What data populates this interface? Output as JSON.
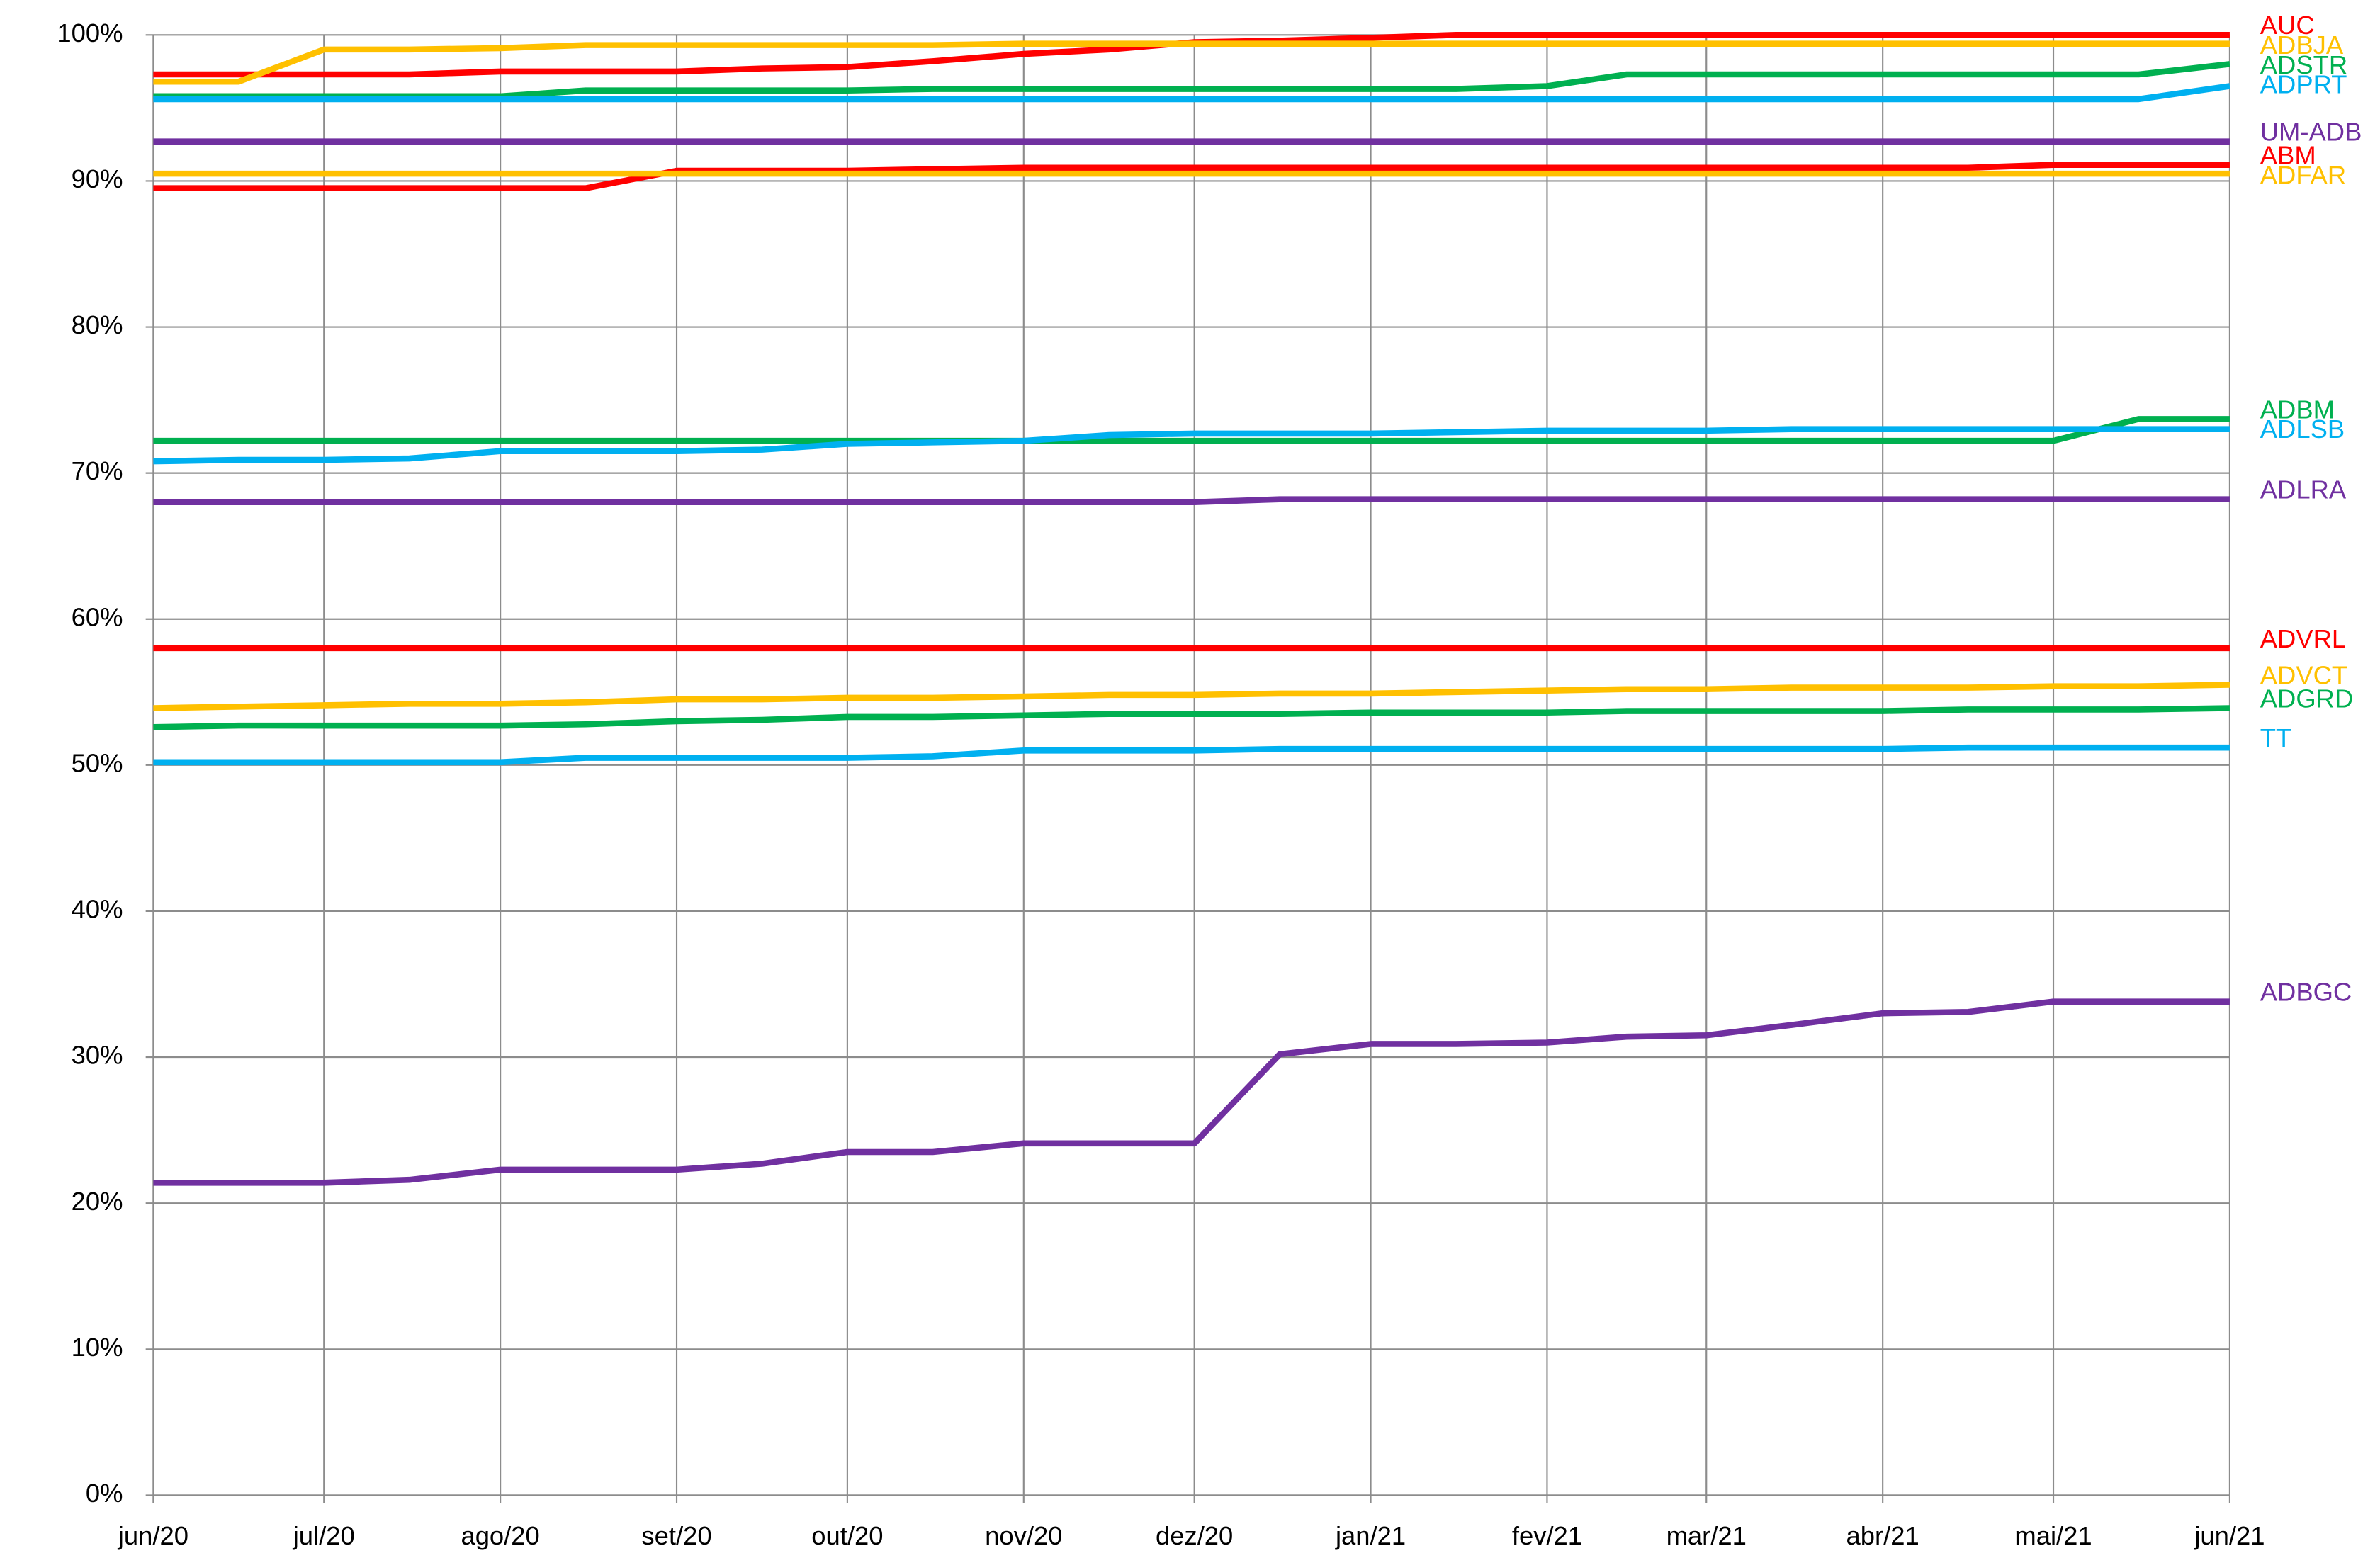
{
  "chart_data": {
    "type": "line",
    "x": [
      0,
      15,
      30,
      45,
      61,
      76,
      92,
      107,
      122,
      137,
      153,
      168,
      183,
      198,
      214,
      229,
      245,
      259,
      273,
      288,
      304,
      319,
      334,
      349,
      365
    ],
    "xlim": [
      0,
      365
    ],
    "xticks": [
      {
        "value": 0,
        "label": "jun/20"
      },
      {
        "value": 30,
        "label": "jul/20"
      },
      {
        "value": 61,
        "label": "ago/20"
      },
      {
        "value": 92,
        "label": "set/20"
      },
      {
        "value": 122,
        "label": "out/20"
      },
      {
        "value": 153,
        "label": "nov/20"
      },
      {
        "value": 183,
        "label": "dez/20"
      },
      {
        "value": 214,
        "label": "jan/21"
      },
      {
        "value": 245,
        "label": "fev/21"
      },
      {
        "value": 273,
        "label": "mar/21"
      },
      {
        "value": 304,
        "label": "abr/21"
      },
      {
        "value": 334,
        "label": "mai/21"
      },
      {
        "value": 365,
        "label": "jun/21"
      }
    ],
    "ylim": [
      0,
      100
    ],
    "yticks": [
      {
        "value": 0,
        "label": "0%"
      },
      {
        "value": 10,
        "label": "10%"
      },
      {
        "value": 20,
        "label": "20%"
      },
      {
        "value": 30,
        "label": "30%"
      },
      {
        "value": 40,
        "label": "40%"
      },
      {
        "value": 50,
        "label": "50%"
      },
      {
        "value": 60,
        "label": "60%"
      },
      {
        "value": 70,
        "label": "70%"
      },
      {
        "value": 80,
        "label": "80%"
      },
      {
        "value": 90,
        "label": "90%"
      },
      {
        "value": 100,
        "label": "100%"
      }
    ],
    "grid": true,
    "series": [
      {
        "name": "AUC",
        "color": "#ff0000",
        "values": [
          97.3,
          97.3,
          97.3,
          97.3,
          97.5,
          97.5,
          97.5,
          97.7,
          97.8,
          98.2,
          98.7,
          99.0,
          99.5,
          99.6,
          99.8,
          100,
          100,
          100,
          100,
          100,
          100,
          100,
          100,
          100,
          100
        ]
      },
      {
        "name": "ADBJA",
        "color": "#ffc000",
        "values": [
          96.8,
          96.8,
          99.0,
          99.0,
          99.1,
          99.3,
          99.3,
          99.3,
          99.3,
          99.3,
          99.4,
          99.4,
          99.4,
          99.4,
          99.4,
          99.4,
          99.4,
          99.4,
          99.4,
          99.4,
          99.4,
          99.4,
          99.4,
          99.4,
          99.4
        ]
      },
      {
        "name": "ADSTR",
        "color": "#00b050",
        "values": [
          95.8,
          95.8,
          95.8,
          95.8,
          95.8,
          96.2,
          96.2,
          96.2,
          96.2,
          96.3,
          96.3,
          96.3,
          96.3,
          96.3,
          96.3,
          96.3,
          96.5,
          97.3,
          97.3,
          97.3,
          97.3,
          97.3,
          97.3,
          97.3,
          98.0
        ]
      },
      {
        "name": "ADPRT",
        "color": "#00b0f0",
        "values": [
          95.6,
          95.6,
          95.6,
          95.6,
          95.6,
          95.6,
          95.6,
          95.6,
          95.6,
          95.6,
          95.6,
          95.6,
          95.6,
          95.6,
          95.6,
          95.6,
          95.6,
          95.6,
          95.6,
          95.6,
          95.6,
          95.6,
          95.6,
          95.6,
          96.5
        ]
      },
      {
        "name": "UM-ADB",
        "color": "#7030a0",
        "values": [
          92.7,
          92.7,
          92.7,
          92.7,
          92.7,
          92.7,
          92.7,
          92.7,
          92.7,
          92.7,
          92.7,
          92.7,
          92.7,
          92.7,
          92.7,
          92.7,
          92.7,
          92.7,
          92.7,
          92.7,
          92.7,
          92.7,
          92.7,
          92.7,
          92.7
        ]
      },
      {
        "name": "ABM",
        "color": "#ff0000",
        "values": [
          89.5,
          89.5,
          89.5,
          89.5,
          89.5,
          89.5,
          90.7,
          90.7,
          90.7,
          90.8,
          90.9,
          90.9,
          90.9,
          90.9,
          90.9,
          90.9,
          90.9,
          90.9,
          90.9,
          90.9,
          90.9,
          90.9,
          91.1,
          91.1,
          91.1
        ]
      },
      {
        "name": "ADFAR",
        "color": "#ffc000",
        "values": [
          90.5,
          90.5,
          90.5,
          90.5,
          90.5,
          90.5,
          90.5,
          90.5,
          90.5,
          90.5,
          90.5,
          90.5,
          90.5,
          90.5,
          90.5,
          90.5,
          90.5,
          90.5,
          90.5,
          90.5,
          90.5,
          90.5,
          90.5,
          90.5,
          90.5
        ]
      },
      {
        "name": "ADBM",
        "color": "#00b050",
        "values": [
          72.2,
          72.2,
          72.2,
          72.2,
          72.2,
          72.2,
          72.2,
          72.2,
          72.2,
          72.2,
          72.2,
          72.2,
          72.2,
          72.2,
          72.2,
          72.2,
          72.2,
          72.2,
          72.2,
          72.2,
          72.2,
          72.2,
          72.2,
          73.7,
          73.7
        ]
      },
      {
        "name": "ADLSB",
        "color": "#00b0f0",
        "values": [
          70.8,
          70.9,
          70.9,
          71.0,
          71.5,
          71.5,
          71.5,
          71.6,
          72.0,
          72.1,
          72.2,
          72.6,
          72.7,
          72.7,
          72.7,
          72.8,
          72.9,
          72.9,
          72.9,
          73.0,
          73.0,
          73.0,
          73.0,
          73.0,
          73.0
        ]
      },
      {
        "name": "ADLRA",
        "color": "#7030a0",
        "values": [
          68.0,
          68.0,
          68.0,
          68.0,
          68.0,
          68.0,
          68.0,
          68.0,
          68.0,
          68.0,
          68.0,
          68.0,
          68.0,
          68.2,
          68.2,
          68.2,
          68.2,
          68.2,
          68.2,
          68.2,
          68.2,
          68.2,
          68.2,
          68.2,
          68.2
        ]
      },
      {
        "name": "ADVRL",
        "color": "#ff0000",
        "values": [
          58.0,
          58.0,
          58.0,
          58.0,
          58.0,
          58.0,
          58.0,
          58.0,
          58.0,
          58.0,
          58.0,
          58.0,
          58.0,
          58.0,
          58.0,
          58.0,
          58.0,
          58.0,
          58.0,
          58.0,
          58.0,
          58.0,
          58.0,
          58.0,
          58.0
        ]
      },
      {
        "name": "ADVCT",
        "color": "#ffc000",
        "values": [
          53.9,
          54.0,
          54.1,
          54.2,
          54.2,
          54.3,
          54.5,
          54.5,
          54.6,
          54.6,
          54.7,
          54.8,
          54.8,
          54.9,
          54.9,
          55.0,
          55.1,
          55.2,
          55.2,
          55.3,
          55.3,
          55.3,
          55.4,
          55.4,
          55.5
        ]
      },
      {
        "name": "ADGRD",
        "color": "#00b050",
        "values": [
          52.6,
          52.7,
          52.7,
          52.7,
          52.7,
          52.8,
          53.0,
          53.1,
          53.3,
          53.3,
          53.4,
          53.5,
          53.5,
          53.5,
          53.6,
          53.6,
          53.6,
          53.7,
          53.7,
          53.7,
          53.7,
          53.8,
          53.8,
          53.8,
          53.9
        ]
      },
      {
        "name": "TT",
        "color": "#00b0f0",
        "values": [
          50.2,
          50.2,
          50.2,
          50.2,
          50.2,
          50.5,
          50.5,
          50.5,
          50.5,
          50.6,
          51.0,
          51.0,
          51.0,
          51.1,
          51.1,
          51.1,
          51.1,
          51.1,
          51.1,
          51.1,
          51.1,
          51.2,
          51.2,
          51.2,
          51.2
        ]
      },
      {
        "name": "ADBGC",
        "color": "#7030a0",
        "values": [
          21.4,
          21.4,
          21.4,
          21.6,
          22.3,
          22.3,
          22.3,
          22.7,
          23.5,
          23.5,
          24.1,
          24.1,
          24.1,
          30.2,
          30.9,
          30.9,
          31.0,
          31.4,
          31.5,
          32.2,
          33.0,
          33.1,
          33.8,
          33.8,
          33.8
        ]
      }
    ]
  }
}
